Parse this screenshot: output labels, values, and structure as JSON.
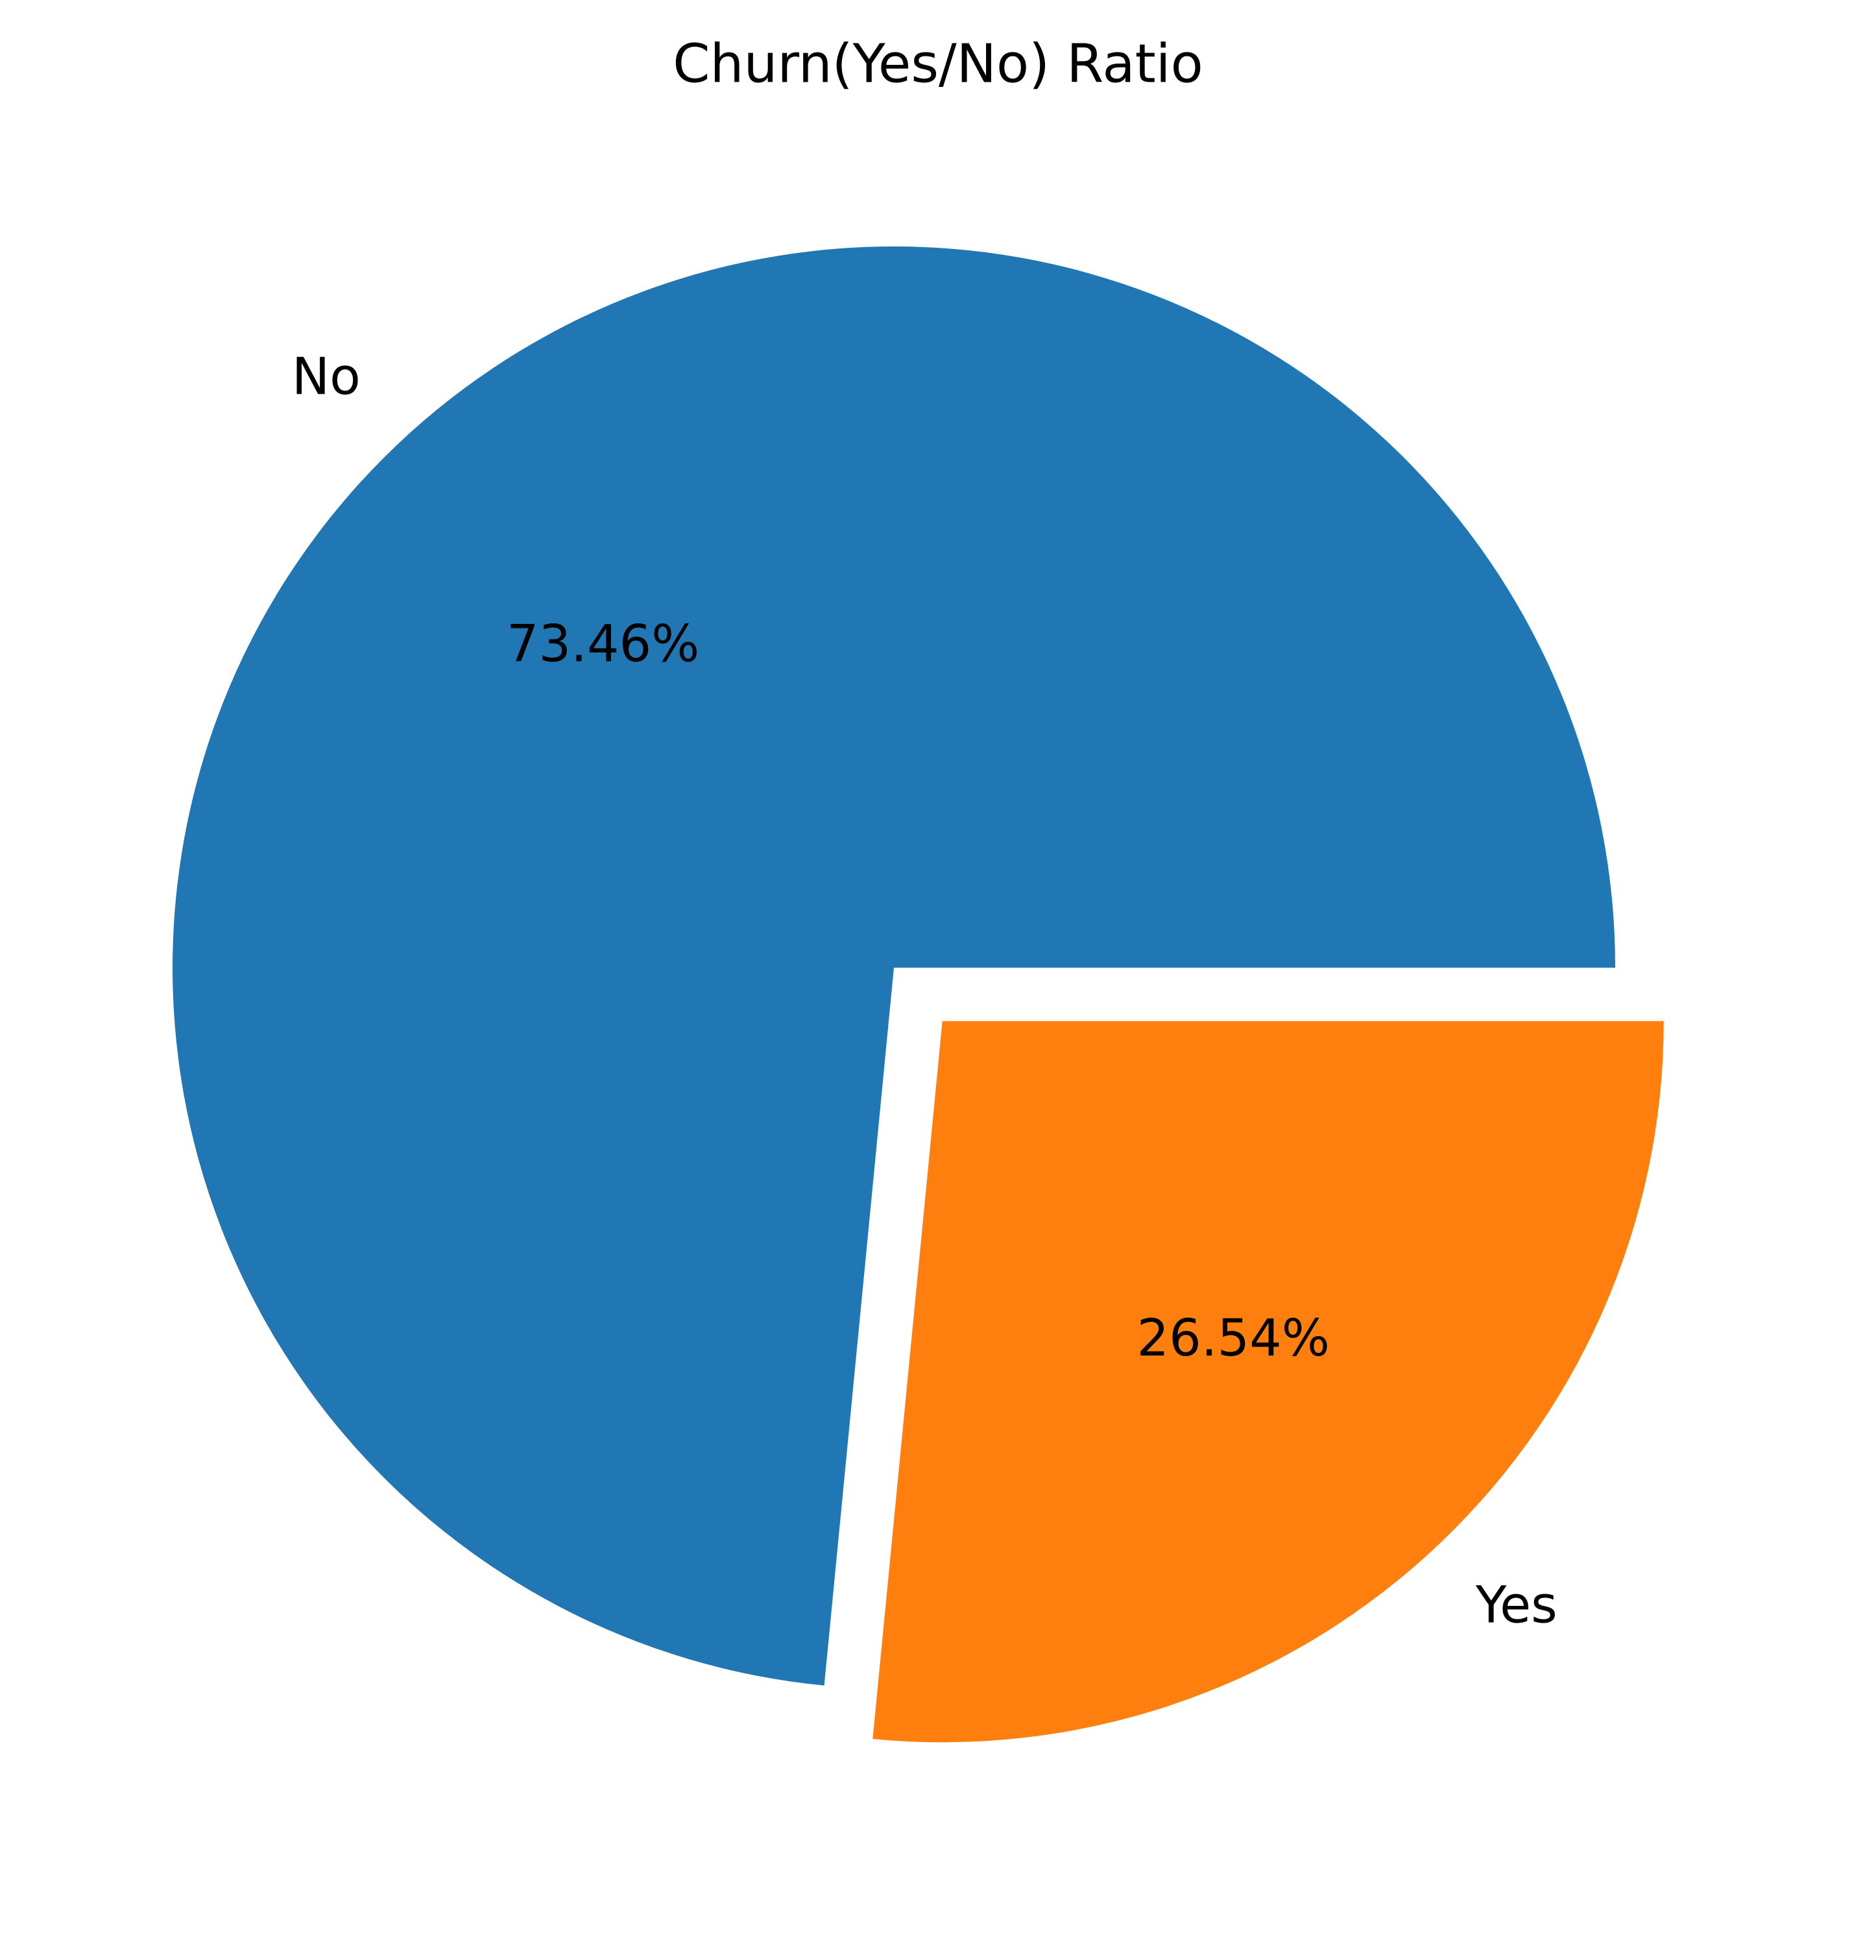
{
  "chart_data": {
    "type": "pie",
    "title": "Churn(Yes/No) Ratio",
    "slices": [
      {
        "label": "No",
        "value": 73.46,
        "display": "73.46%",
        "color": "#2077b4",
        "exploded": false
      },
      {
        "label": "Yes",
        "value": 26.54,
        "display": "26.54%",
        "color": "#ff7f0e",
        "exploded": true
      }
    ],
    "start_angle_deg": 0,
    "direction": "counterclockwise",
    "legend": "none"
  }
}
